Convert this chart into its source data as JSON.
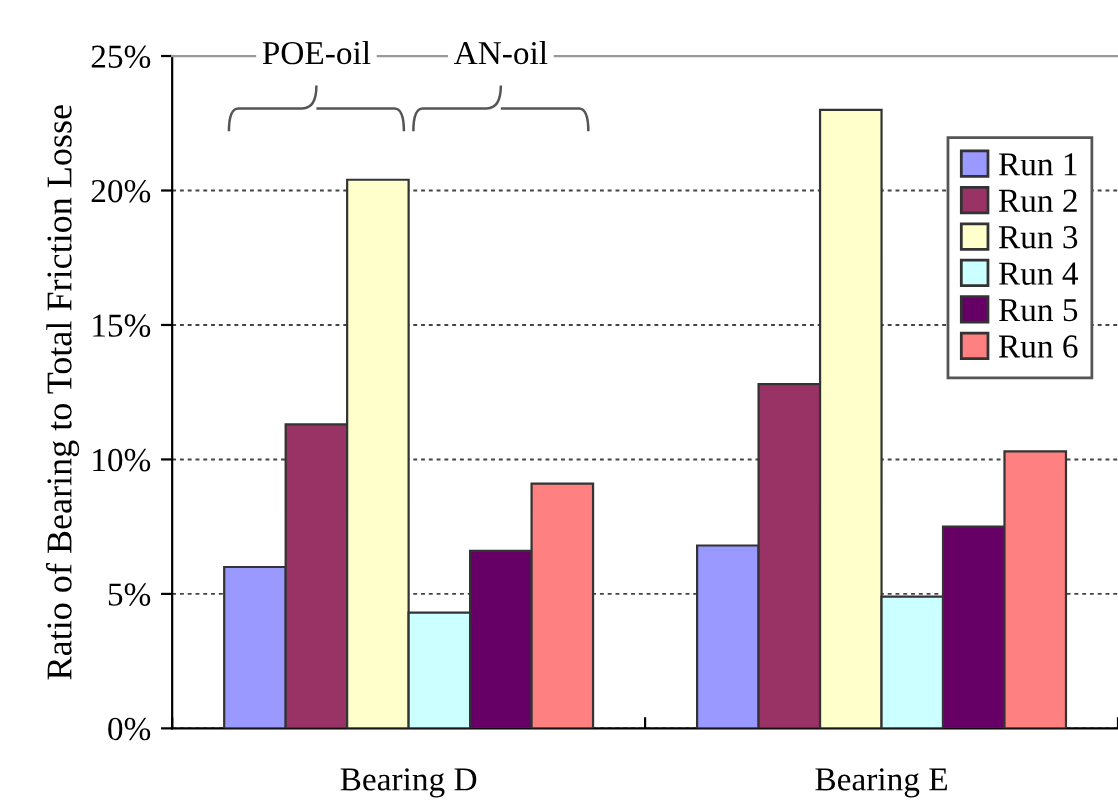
{
  "chart_data": {
    "type": "bar",
    "ylabel": "Ratio of Bearing to Total Friction Losse",
    "categories": [
      "Bearing D",
      "Bearing E"
    ],
    "series": [
      {
        "name": "Run 1",
        "color": "#9999ff",
        "values": [
          6.0,
          6.8
        ]
      },
      {
        "name": "Run 2",
        "color": "#993366",
        "values": [
          11.3,
          12.8
        ]
      },
      {
        "name": "Run 3",
        "color": "#ffffcc",
        "values": [
          20.4,
          23.0
        ]
      },
      {
        "name": "Run 4",
        "color": "#ccffff",
        "values": [
          4.3,
          4.9
        ]
      },
      {
        "name": "Run 5",
        "color": "#660066",
        "values": [
          6.6,
          7.5
        ]
      },
      {
        "name": "Run 6",
        "color": "#ff8080",
        "values": [
          9.1,
          10.3
        ]
      }
    ],
    "ylim": [
      0,
      25
    ],
    "yticks": [
      {
        "value": 0,
        "label": "0%"
      },
      {
        "value": 5,
        "label": "5%"
      },
      {
        "value": 10,
        "label": "10%"
      },
      {
        "value": 15,
        "label": "15%"
      },
      {
        "value": 20,
        "label": "20%"
      },
      {
        "value": 25,
        "label": "25%"
      }
    ],
    "grid": "y",
    "legend": "right",
    "annotations": [
      "POE-oil",
      "AN-oil"
    ]
  }
}
